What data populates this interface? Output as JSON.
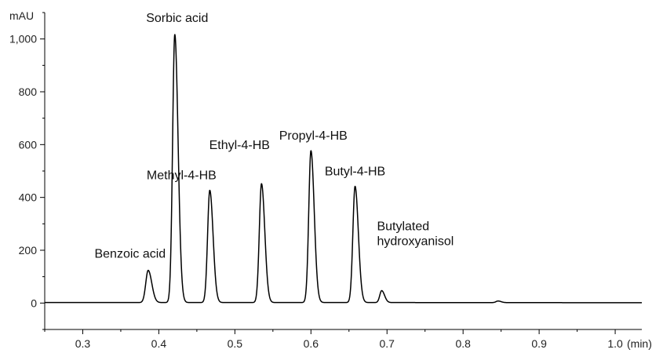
{
  "chart_data": {
    "type": "line",
    "xlabel": "(min)",
    "ylabel": "mAU",
    "xlim": [
      0.25,
      1.035
    ],
    "ylim": [
      -100,
      1100
    ],
    "x_ticks": [
      0.3,
      0.4,
      0.5,
      0.6,
      0.7,
      0.8,
      0.9,
      1.0
    ],
    "x_tick_labels": [
      "0.3",
      "0.4",
      "0.5",
      "0.6",
      "0.7",
      "0.8",
      "0.9",
      "1.0"
    ],
    "y_ticks": [
      0,
      200,
      400,
      600,
      800,
      1000
    ],
    "y_tick_labels": [
      "0",
      "200",
      "400",
      "600",
      "800",
      "1,000"
    ],
    "grid": false,
    "line_color": "#000000",
    "baseline": 2,
    "peaks": [
      {
        "name": "Benzoic acid",
        "retention_time": 0.386,
        "height": 122,
        "width": 0.0035
      },
      {
        "name": "Sorbic acid",
        "retention_time": 0.421,
        "height": 1015,
        "width": 0.0032
      },
      {
        "name": "Methyl-4-HB",
        "retention_time": 0.467,
        "height": 425,
        "width": 0.0032
      },
      {
        "name": "Ethyl-4-HB",
        "retention_time": 0.535,
        "height": 450,
        "width": 0.0032
      },
      {
        "name": "Propyl-4-HB",
        "retention_time": 0.6,
        "height": 575,
        "width": 0.0032
      },
      {
        "name": "Butyl-4-HB",
        "retention_time": 0.658,
        "height": 440,
        "width": 0.0032
      },
      {
        "name": "Butylated\nhydroxyanisol",
        "retention_time": 0.693,
        "height": 45,
        "width": 0.0028
      },
      {
        "name": "",
        "retention_time": 0.846,
        "height": 6,
        "width": 0.003
      }
    ]
  }
}
